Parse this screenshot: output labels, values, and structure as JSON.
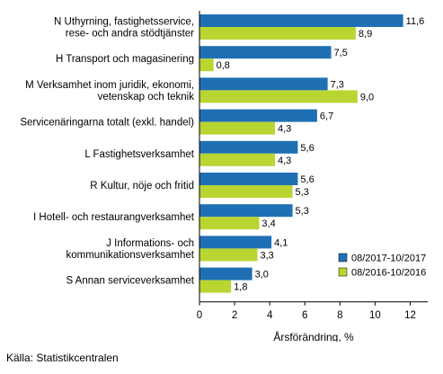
{
  "chart_data": {
    "type": "bar",
    "orientation": "horizontal",
    "categories": [
      [
        "N Uthyrning, fastighetsservice,",
        "rese- och andra stödtjänster"
      ],
      [
        "H Transport och magasinering"
      ],
      [
        "M Verksamhet inom juridik, ekonomi,",
        "vetenskap och teknik"
      ],
      [
        "Servicenäringarna totalt (exkl. handel)"
      ],
      [
        "L Fastighetsverksamhet"
      ],
      [
        "R Kultur, nöje och fritid"
      ],
      [
        "I Hotell- och restaurangverksamhet"
      ],
      [
        "J Informations- och",
        "kommunikationsverksamhet"
      ],
      [
        "S Annan serviceverksamhet"
      ]
    ],
    "series": [
      {
        "name": "08/2017-10/2017",
        "color": "#1f6fb5",
        "values": [
          11.6,
          7.5,
          7.3,
          6.7,
          5.6,
          5.6,
          5.3,
          4.1,
          3.0
        ],
        "labels": [
          "11,6",
          "7,5",
          "7,3",
          "6,7",
          "5,6",
          "5,6",
          "5,3",
          "4,1",
          "3,0"
        ]
      },
      {
        "name": "08/2016-10/2016",
        "color": "#b9d531",
        "values": [
          8.9,
          0.8,
          9.0,
          4.3,
          4.3,
          5.3,
          3.4,
          3.3,
          1.8
        ],
        "labels": [
          "8,9",
          "0,8",
          "9,0",
          "4,3",
          "4,3",
          "5,3",
          "3,4",
          "3,3",
          "1,8"
        ]
      }
    ],
    "xlim": [
      0,
      13
    ],
    "xticks": [
      0,
      2,
      4,
      6,
      8,
      10,
      12
    ],
    "xlabel": "Årsförändring, %",
    "legend_position": "bottom-right",
    "grid": false
  },
  "source": "Källa: Statistikcentralen"
}
